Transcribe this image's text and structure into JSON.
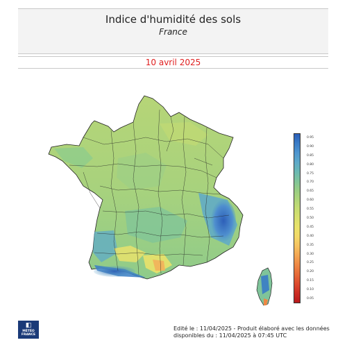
{
  "header": {
    "title": "Indice d'humidité des sols",
    "subtitle": "France"
  },
  "date": "10 avril 2025",
  "legend": {
    "ticks": [
      "0.95",
      "0.90",
      "0.85",
      "0.80",
      "0.75",
      "0.70",
      "0.65",
      "0.60",
      "0.55",
      "0.50",
      "0.45",
      "0.40",
      "0.35",
      "0.30",
      "0.25",
      "0.20",
      "0.15",
      "0.10",
      "0.05"
    ],
    "colors": [
      "#2a5fb8",
      "#3a7cc6",
      "#4e95cf",
      "#5ea9c9",
      "#6ab8b4",
      "#7fc49a",
      "#98cd84",
      "#afd57a",
      "#c6dc72",
      "#d9e06e",
      "#eae26a",
      "#f3d868",
      "#f5c160",
      "#f3a552",
      "#ee8744",
      "#e66a38",
      "#dc4a2e",
      "#cc2e24",
      "#b8191c"
    ]
  },
  "logo": {
    "line1": "MÉTÉO",
    "line2": "FRANCE"
  },
  "footer": {
    "line1": "Edité le : 11/04/2025 - Produit élaboré avec les données",
    "line2": "disponibles du : 11/04/2025 à 07:45 UTC"
  }
}
